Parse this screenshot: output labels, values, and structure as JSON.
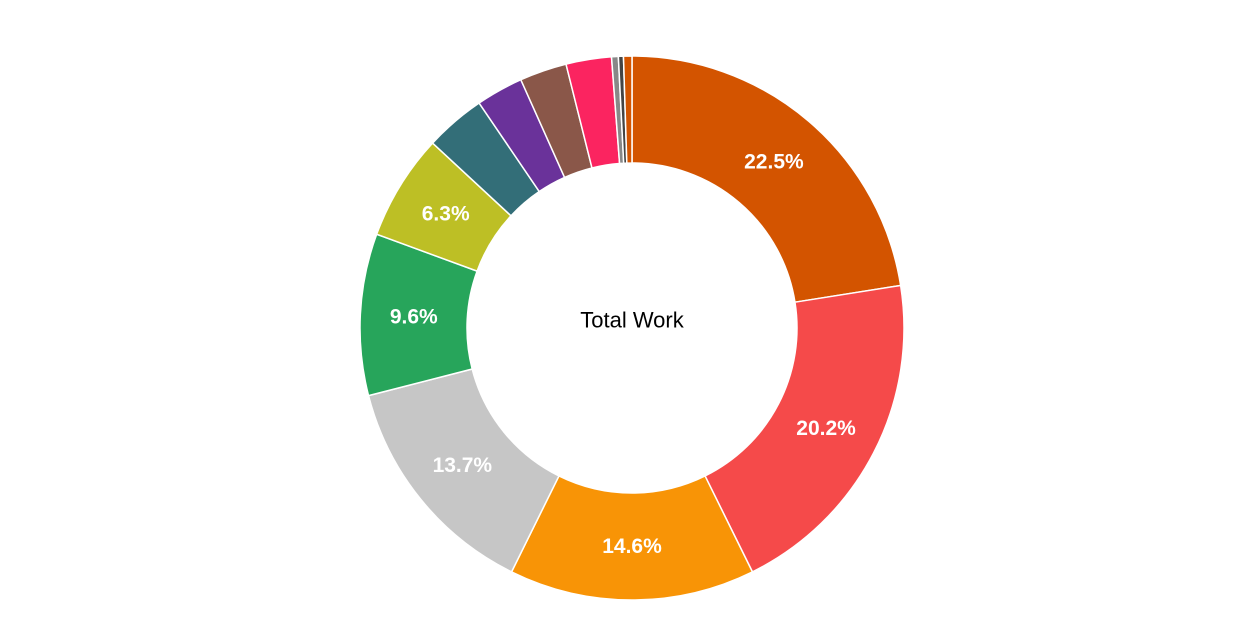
{
  "chart_data": {
    "type": "pie",
    "center_label": "Total Work",
    "slices": [
      {
        "value": 22.5,
        "label": "22.5%",
        "color": "#d35400"
      },
      {
        "value": 20.2,
        "label": "20.2%",
        "color": "#f54a4a"
      },
      {
        "value": 14.6,
        "label": "14.6%",
        "color": "#f89406"
      },
      {
        "value": 13.7,
        "label": "13.7%",
        "color": "#c6c6c6"
      },
      {
        "value": 9.6,
        "label": "9.6%",
        "color": "#27a55b"
      },
      {
        "value": 6.3,
        "label": "6.3%",
        "color": "#bdbf25"
      },
      {
        "value": 3.6,
        "label": "",
        "color": "#336e78"
      },
      {
        "value": 2.8,
        "label": "",
        "color": "#6a329a"
      },
      {
        "value": 2.8,
        "label": "",
        "color": "#8a5749"
      },
      {
        "value": 2.7,
        "label": "",
        "color": "#fb2460"
      },
      {
        "value": 0.4,
        "label": "",
        "color": "#888888"
      },
      {
        "value": 0.3,
        "label": "",
        "color": "#444444"
      },
      {
        "value": 0.5,
        "label": "",
        "color": "#d35400"
      }
    ]
  }
}
